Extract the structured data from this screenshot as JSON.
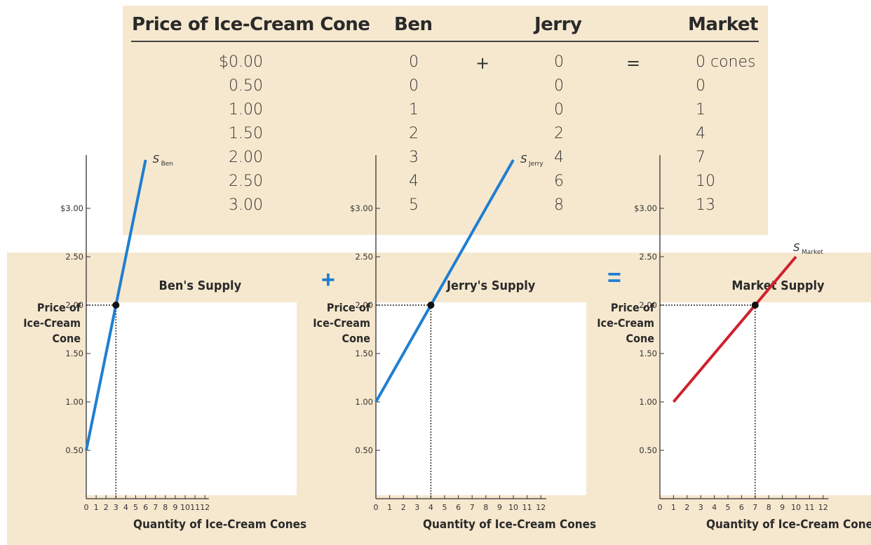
{
  "table": {
    "headers": [
      "Price of Ice-Cream Cone",
      "Ben",
      "Jerry",
      "Market"
    ],
    "plus_sign": "+",
    "equals_sign": "=",
    "rows": [
      {
        "price": "$0.00",
        "ben": "0",
        "jerry": "0",
        "market": "0 cones"
      },
      {
        "price": "0.50",
        "ben": "0",
        "jerry": "0",
        "market": "0"
      },
      {
        "price": "1.00",
        "ben": "1",
        "jerry": "0",
        "market": "1"
      },
      {
        "price": "1.50",
        "ben": "2",
        "jerry": "2",
        "market": "4"
      },
      {
        "price": "2.00",
        "ben": "3",
        "jerry": "4",
        "market": "7"
      },
      {
        "price": "2.50",
        "ben": "4",
        "jerry": "6",
        "market": "10"
      },
      {
        "price": "3.00",
        "ben": "5",
        "jerry": "8",
        "market": "13"
      }
    ]
  },
  "operators": {
    "plus": "+",
    "equals": "="
  },
  "colors": {
    "blue_series": "#1f7fd1",
    "red_series": "#d0202e",
    "panel_bg": "#f6e8cf",
    "operator": "#1f7fd1"
  },
  "chart_data": [
    {
      "type": "line",
      "title": "Ben's Supply",
      "ylabel": "Price of\nIce-Cream\nCone",
      "xlabel": "Quantity of Ice-Cream Cones",
      "xlim": [
        0,
        12
      ],
      "ylim": [
        0,
        3
      ],
      "x_ticks": [
        "0",
        "1",
        "2",
        "3",
        "4",
        "5",
        "6",
        "7",
        "8",
        "9",
        "10",
        "11",
        "12"
      ],
      "y_ticks": [
        "0.50",
        "1.00",
        "1.50",
        "2.00",
        "2.50",
        "$3.00"
      ],
      "series": [
        {
          "name": "S",
          "subscript": "Ben",
          "color": "#1f7fd1",
          "points": [
            [
              0,
              0.5
            ],
            [
              6,
              3.5
            ]
          ]
        }
      ],
      "highlight_point": {
        "x": 3,
        "y": 2.0
      }
    },
    {
      "type": "line",
      "title": "Jerry's Supply",
      "ylabel": "Price of\nIce-Cream\nCone",
      "xlabel": "Quantity of Ice-Cream Cones",
      "xlim": [
        0,
        12
      ],
      "ylim": [
        0,
        3
      ],
      "x_ticks": [
        "0",
        "1",
        "2",
        "3",
        "4",
        "5",
        "6",
        "7",
        "8",
        "9",
        "10",
        "11",
        "12"
      ],
      "y_ticks": [
        "0.50",
        "1.00",
        "1.50",
        "2.00",
        "2.50",
        "$3.00"
      ],
      "series": [
        {
          "name": "S",
          "subscript": "Jerry",
          "color": "#1f7fd1",
          "points": [
            [
              0,
              1.0
            ],
            [
              10,
              3.5
            ]
          ]
        }
      ],
      "highlight_point": {
        "x": 4,
        "y": 2.0
      }
    },
    {
      "type": "line",
      "title": "Market Supply",
      "ylabel": "Price of\nIce-Cream\nCone",
      "xlabel": "Quantity of Ice-Cream Cones",
      "xlim": [
        0,
        12
      ],
      "ylim": [
        0,
        3
      ],
      "x_ticks": [
        "0",
        "1",
        "2",
        "3",
        "4",
        "5",
        "6",
        "7",
        "8",
        "9",
        "10",
        "11",
        "12"
      ],
      "y_ticks": [
        "0.50",
        "1.00",
        "1.50",
        "2.00",
        "2.50",
        "$3.00"
      ],
      "series": [
        {
          "name": "S",
          "subscript": "Market",
          "color": "#d0202e",
          "points": [
            [
              1,
              1.0
            ],
            [
              10,
              2.5
            ]
          ]
        }
      ],
      "highlight_point": {
        "x": 7,
        "y": 2.0
      }
    }
  ]
}
